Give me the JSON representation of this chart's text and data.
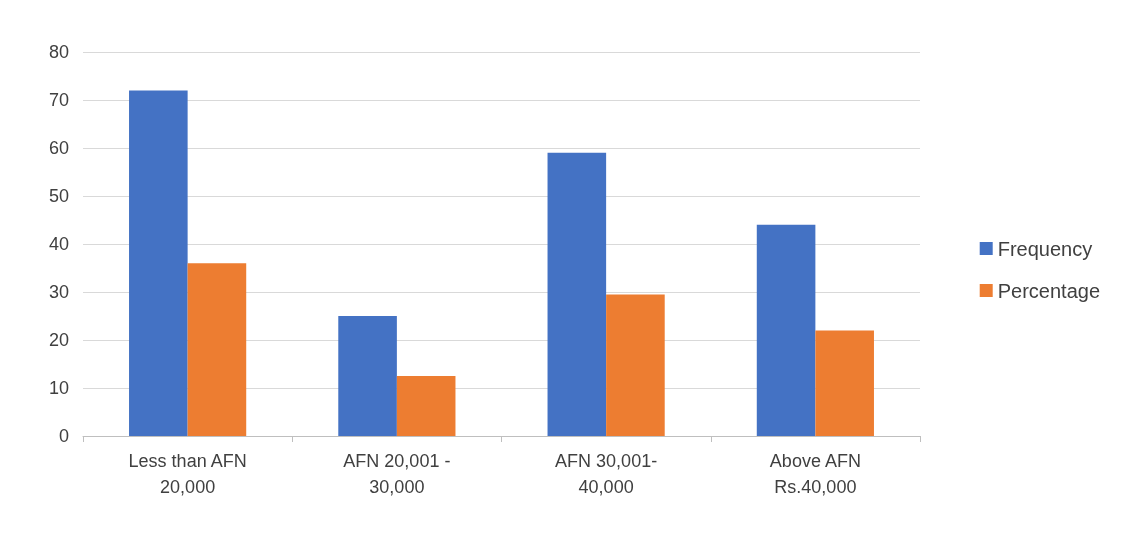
{
  "chart_data": {
    "type": "bar",
    "categories": [
      "Less than AFN\n20,000",
      "AFN 20,001 -\n30,000",
      "AFN 30,001-\n40,000",
      "Above AFN\nRs.40,000"
    ],
    "series": [
      {
        "name": "Frequency",
        "color": "#4472c4",
        "values": [
          72,
          25,
          59,
          44
        ]
      },
      {
        "name": "Percentage",
        "color": "#ed7d31",
        "values": [
          36,
          12.5,
          29.5,
          22
        ]
      }
    ],
    "ylim": [
      0,
      80
    ],
    "yticks": [
      0,
      10,
      20,
      30,
      40,
      50,
      60,
      70,
      80
    ],
    "grid": "y",
    "legend": "right"
  }
}
